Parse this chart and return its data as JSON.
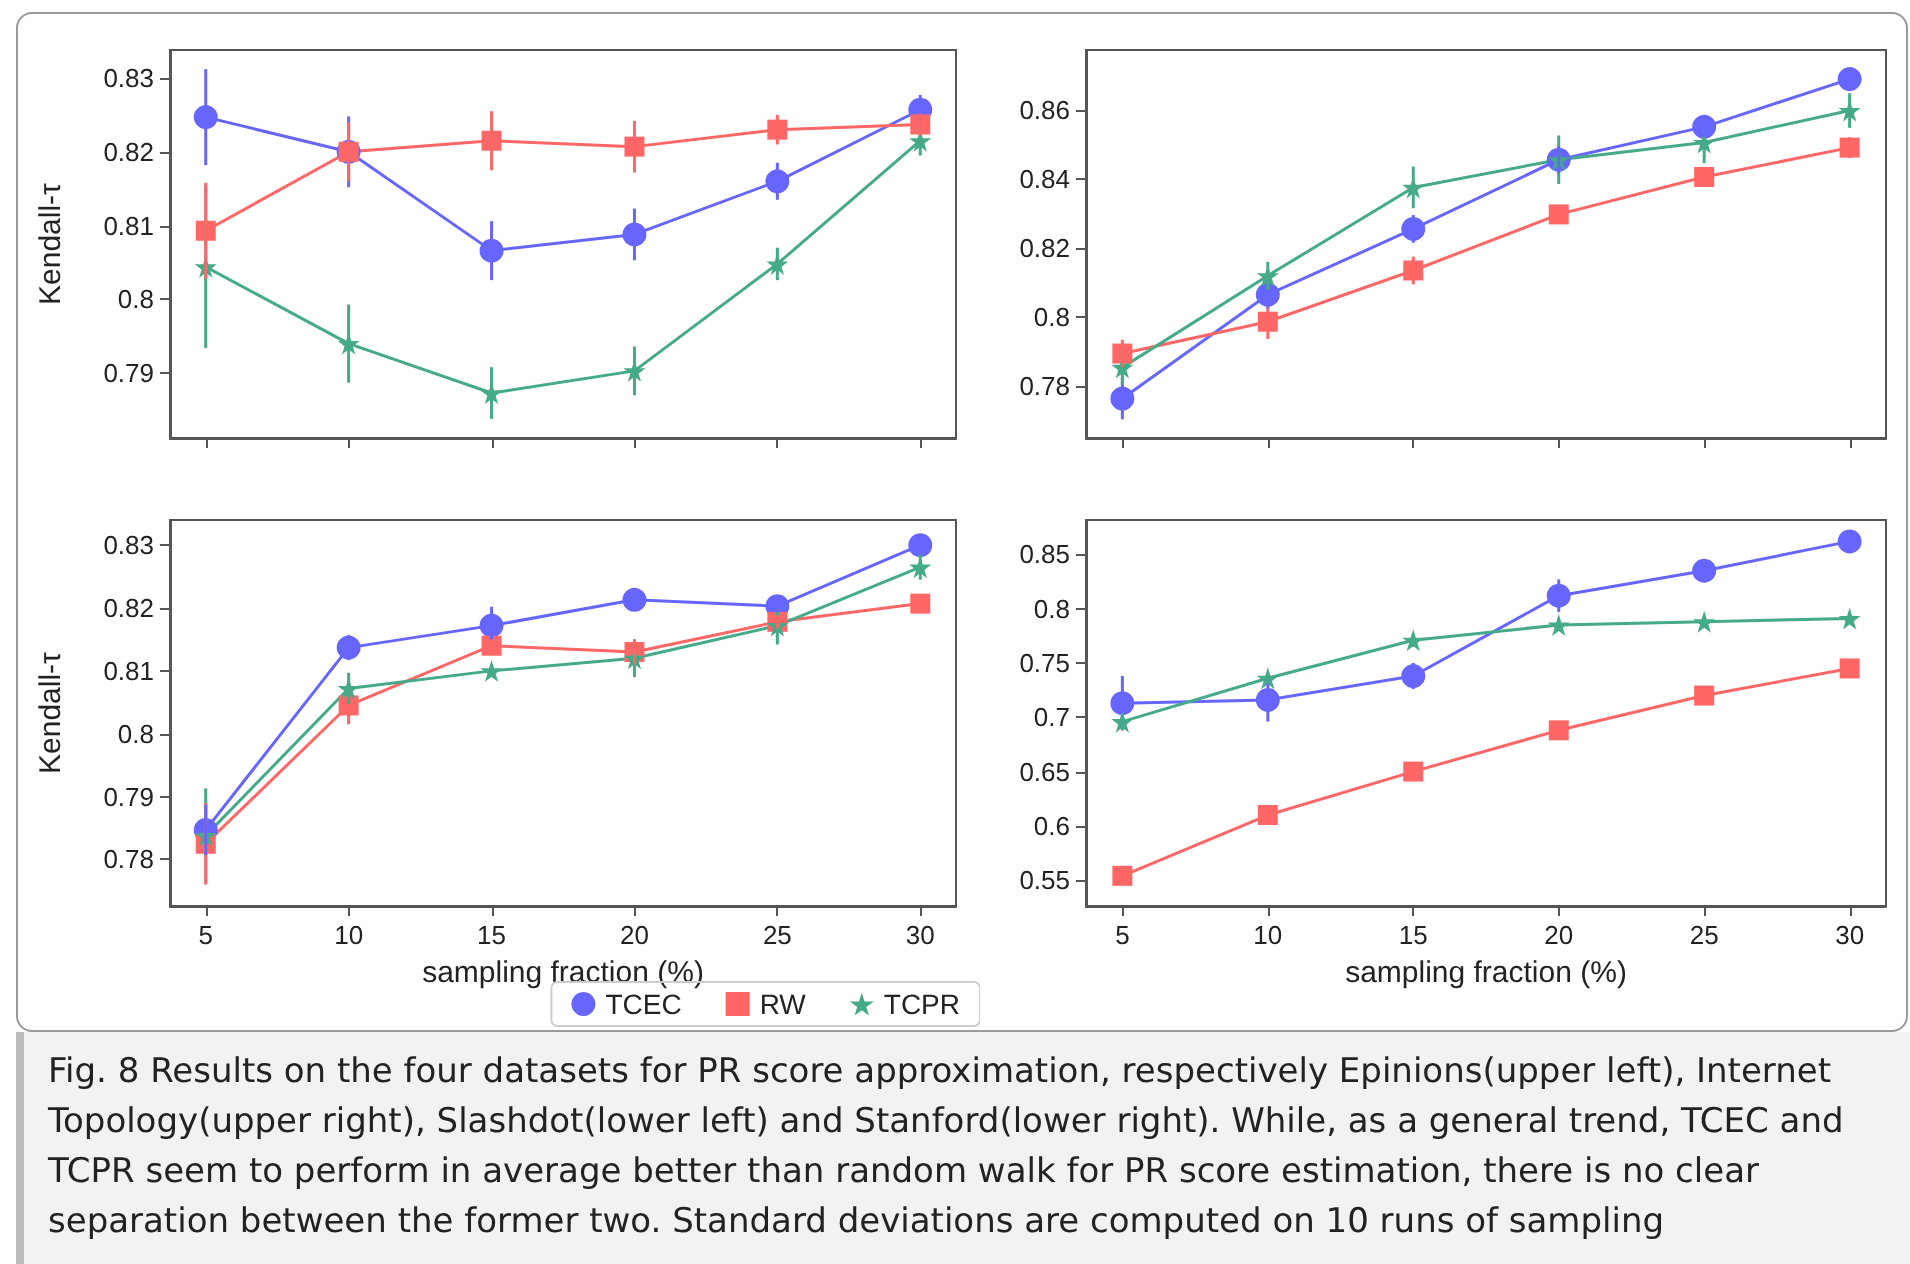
{
  "chart_data": [
    {
      "type": "line",
      "ylabel": "Kendall-τ",
      "x": [
        5,
        10,
        15,
        20,
        25,
        30
      ],
      "xlim": [
        3.75,
        31.25
      ],
      "xticks": [
        5,
        10,
        15,
        20,
        25,
        30
      ],
      "ylim": [
        0.7812,
        0.8338
      ],
      "yticks": [
        0.79,
        0.8,
        0.81,
        0.82,
        0.83
      ],
      "tick_labels": "y",
      "grid": false,
      "series": [
        {
          "color": "#6666ff",
          "marker": "circle",
          "values": [
            0.8247,
            0.82,
            0.8066,
            0.8088,
            0.816,
            0.8257
          ],
          "errors": [
            0.0065,
            0.0048,
            0.004,
            0.0035,
            0.0025,
            0.002
          ]
        },
        {
          "color": "#ff6666",
          "marker": "square",
          "values": [
            0.8093,
            0.82,
            0.8215,
            0.8207,
            0.823,
            0.8237
          ],
          "errors": [
            0.0065,
            0.004,
            0.004,
            0.0035,
            0.002,
            0.0015
          ]
        },
        {
          "color": "#44aa88",
          "marker": "star",
          "values": [
            0.8044,
            0.794,
            0.7873,
            0.7903,
            0.8048,
            0.8215
          ],
          "errors": [
            0.011,
            0.0053,
            0.0035,
            0.0033,
            0.0022,
            0.002
          ]
        }
      ]
    },
    {
      "type": "line",
      "x": [
        5,
        10,
        15,
        20,
        25,
        30
      ],
      "xlim": [
        3.75,
        31.25
      ],
      "xticks": [
        5,
        10,
        15,
        20,
        25,
        30
      ],
      "ylim": [
        0.7651,
        0.8772
      ],
      "yticks": [
        0.78,
        0.8,
        0.82,
        0.84,
        0.86
      ],
      "tick_labels": "y",
      "grid": false,
      "series": [
        {
          "color": "#6666ff",
          "marker": "circle",
          "values": [
            0.7765,
            0.8065,
            0.8255,
            0.8455,
            0.855,
            0.8688
          ],
          "errors": [
            0.006,
            0.004,
            0.004,
            0.004,
            0.003,
            0.003
          ]
        },
        {
          "color": "#ff6666",
          "marker": "square",
          "values": [
            0.7895,
            0.7987,
            0.8135,
            0.8297,
            0.8405,
            0.849
          ],
          "errors": [
            0.004,
            0.005,
            0.004,
            0.001,
            0.002,
            0.003
          ]
        },
        {
          "color": "#44aa88",
          "marker": "star",
          "values": [
            0.7855,
            0.812,
            0.8375,
            0.8455,
            0.8505,
            0.8597
          ],
          "errors": [
            0.005,
            0.004,
            0.006,
            0.007,
            0.006,
            0.005
          ]
        }
      ]
    },
    {
      "type": "line",
      "ylabel": "Kendall-τ",
      "xlabel": "sampling fraction (%)",
      "x": [
        5,
        10,
        15,
        20,
        25,
        30
      ],
      "xlim": [
        3.75,
        31.25
      ],
      "xticks": [
        5,
        10,
        15,
        20,
        25,
        30
      ],
      "ylim": [
        0.7726,
        0.834
      ],
      "yticks": [
        0.78,
        0.79,
        0.8,
        0.81,
        0.82,
        0.83
      ],
      "grid": false,
      "legend": "bottom",
      "series": [
        {
          "name": "TCEC",
          "color": "#6666ff",
          "marker": "circle",
          "values": [
            0.7847,
            0.8137,
            0.8172,
            0.8213,
            0.8203,
            0.83
          ],
          "errors": [
            0.004,
            0.002,
            0.003,
            0.001,
            0.001,
            0.001
          ]
        },
        {
          "name": "RW",
          "color": "#ff6666",
          "marker": "square",
          "values": [
            0.7825,
            0.8045,
            0.814,
            0.813,
            0.8178,
            0.8207
          ],
          "errors": [
            0.0065,
            0.003,
            0.001,
            0.002,
            0.001,
            0.001
          ]
        },
        {
          "name": "TCPR",
          "color": "#44aa88",
          "marker": "star",
          "values": [
            0.7838,
            0.8072,
            0.81,
            0.812,
            0.8172,
            0.8265
          ],
          "errors": [
            0.0075,
            0.0025,
            0.001,
            0.003,
            0.003,
            0.002
          ]
        }
      ]
    },
    {
      "type": "line",
      "xlabel": "sampling fraction (%)",
      "x": [
        5,
        10,
        15,
        20,
        25,
        30
      ],
      "xlim": [
        3.75,
        31.25
      ],
      "xticks": [
        5,
        10,
        15,
        20,
        25,
        30
      ],
      "ylim": [
        0.5262,
        0.8817
      ],
      "yticks": [
        0.55,
        0.6,
        0.65,
        0.7,
        0.75,
        0.8,
        0.85
      ],
      "grid": false,
      "annotations": [
        "Fig. 8  Results on the four datasets for PR score approximation, respectively Epinions(upper left), Internet Topology(upper right), Slashdot(lower left) and Stanford(lower right). While, as a general trend, TCEC and TCPR seem to perform in average better than random walk for PR score estimation, there is no clear separation between the former two. Standard deviations are computed on 10 runs of sampling"
      ],
      "series": [
        {
          "color": "#6666ff",
          "marker": "circle",
          "values": [
            0.713,
            0.716,
            0.738,
            0.812,
            0.835,
            0.862
          ],
          "errors": [
            0.025,
            0.02,
            0.012,
            0.015,
            0.004,
            0.003
          ]
        },
        {
          "color": "#ff6666",
          "marker": "square",
          "values": [
            0.554,
            0.61,
            0.65,
            0.688,
            0.72,
            0.745
          ],
          "errors": [
            0.003,
            0.003,
            0.003,
            0.003,
            0.003,
            0.003
          ]
        },
        {
          "color": "#44aa88",
          "marker": "star",
          "values": [
            0.696,
            0.736,
            0.771,
            0.785,
            0.788,
            0.791
          ],
          "errors": [
            0.008,
            0.005,
            0.006,
            0.003,
            0.003,
            0.003
          ]
        }
      ]
    }
  ]
}
